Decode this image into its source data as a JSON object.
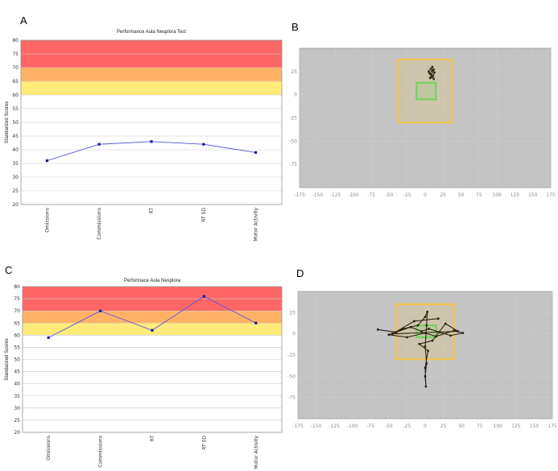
{
  "panels": {
    "a_letter": "A",
    "b_letter": "B",
    "c_letter": "C",
    "d_letter": "D"
  },
  "chart_data": [
    {
      "type": "line",
      "panel": "A",
      "title": "Performance Aula Nesplora Test",
      "ylabel": "Standarized Scores",
      "xlabel": "",
      "categories": [
        "Omissions",
        "Commissions",
        "RT",
        "RT SD",
        "Motor Activity"
      ],
      "series": [
        {
          "values": [
            36,
            42,
            43,
            42,
            39
          ]
        }
      ],
      "ylim": [
        20,
        80
      ],
      "yticks": [
        20,
        25,
        30,
        35,
        40,
        45,
        50,
        55,
        60,
        65,
        70,
        75,
        80
      ],
      "bands": [
        {
          "from": 70,
          "to": 80,
          "color": "#ff6666"
        },
        {
          "from": 65,
          "to": 70,
          "color": "#ffb266"
        },
        {
          "from": 60,
          "to": 65,
          "color": "#ffeb7a"
        }
      ],
      "line_color": "#5555dd",
      "marker_color": "#1a1aa0",
      "grid": true
    },
    {
      "type": "line",
      "panel": "C",
      "title": "Performace Aula Nesplora",
      "ylabel": "Standarized Scores",
      "xlabel": "",
      "categories": [
        "Omissions",
        "Commissions",
        "RT",
        "RT SD",
        "Motor Activity"
      ],
      "series": [
        {
          "values": [
            59,
            70,
            62,
            76,
            65
          ]
        }
      ],
      "ylim": [
        20,
        80
      ],
      "yticks": [
        20,
        25,
        30,
        35,
        40,
        45,
        50,
        55,
        60,
        65,
        70,
        75,
        80
      ],
      "bands": [
        {
          "from": 70,
          "to": 80,
          "color": "#ff6666"
        },
        {
          "from": 65,
          "to": 70,
          "color": "#ffb266"
        },
        {
          "from": 60,
          "to": 65,
          "color": "#ffeb7a"
        }
      ],
      "line_color": "#5555dd",
      "marker_color": "#1a1aa0",
      "grid": true
    },
    {
      "type": "scatter",
      "panel": "B",
      "title": "",
      "xlim": [
        -175,
        175
      ],
      "ylim": [
        -100,
        50
      ],
      "xticks": [
        -175,
        -150,
        -125,
        -100,
        -75,
        -50,
        -25,
        0,
        25,
        50,
        75,
        100,
        125,
        150,
        175
      ],
      "yticks": [
        25,
        0,
        -25,
        -50,
        -75
      ],
      "background": "#c4c4c4",
      "outer_box": {
        "x0": -38,
        "x1": 38,
        "y0": -30,
        "y1": 38,
        "color": "#f5c542"
      },
      "inner_box": {
        "x0": -12,
        "x1": 15,
        "y0": -5,
        "y1": 13,
        "color": "#6fd45a"
      },
      "trace_color": "#3a2a14",
      "trace": [
        [
          5,
          25
        ],
        [
          8,
          28
        ],
        [
          10,
          30
        ],
        [
          12,
          27
        ],
        [
          9,
          22
        ],
        [
          7,
          18
        ],
        [
          11,
          20
        ],
        [
          13,
          24
        ],
        [
          10,
          26
        ],
        [
          6,
          23
        ],
        [
          9,
          19
        ],
        [
          12,
          17
        ]
      ]
    },
    {
      "type": "scatter",
      "panel": "D",
      "title": "",
      "xlim": [
        -175,
        175
      ],
      "ylim": [
        -100,
        50
      ],
      "xticks": [
        -175,
        -150,
        -125,
        -100,
        -75,
        -50,
        -25,
        0,
        25,
        50,
        75,
        100,
        125,
        150,
        175
      ],
      "yticks": [
        25,
        0,
        -25,
        -50,
        -75
      ],
      "background": "#c4c4c4",
      "outer_box": {
        "x0": -40,
        "x1": 40,
        "y0": -30,
        "y1": 35,
        "color": "#f5c542"
      },
      "inner_box": {
        "x0": -12,
        "x1": 15,
        "y0": -4,
        "y1": 10,
        "color": "#6fd45a"
      },
      "trace_color": "#2a2010",
      "trace": [
        [
          -65,
          5
        ],
        [
          -40,
          2
        ],
        [
          -20,
          8
        ],
        [
          -5,
          3
        ],
        [
          5,
          6
        ],
        [
          20,
          2
        ],
        [
          35,
          -2
        ],
        [
          52,
          1
        ],
        [
          40,
          4
        ],
        [
          15,
          -3
        ],
        [
          0,
          1
        ],
        [
          -25,
          -4
        ],
        [
          -50,
          -1
        ],
        [
          -30,
          6
        ],
        [
          -10,
          10
        ],
        [
          0,
          20
        ],
        [
          3,
          26
        ],
        [
          2,
          10
        ],
        [
          0,
          -15
        ],
        [
          2,
          -35
        ],
        [
          0,
          -50
        ],
        [
          1,
          -62
        ],
        [
          0,
          -40
        ],
        [
          4,
          -20
        ],
        [
          -8,
          -12
        ],
        [
          10,
          -8
        ],
        [
          28,
          12
        ],
        [
          45,
          3
        ],
        [
          -45,
          0
        ],
        [
          -15,
          15
        ],
        [
          18,
          18
        ]
      ]
    }
  ]
}
